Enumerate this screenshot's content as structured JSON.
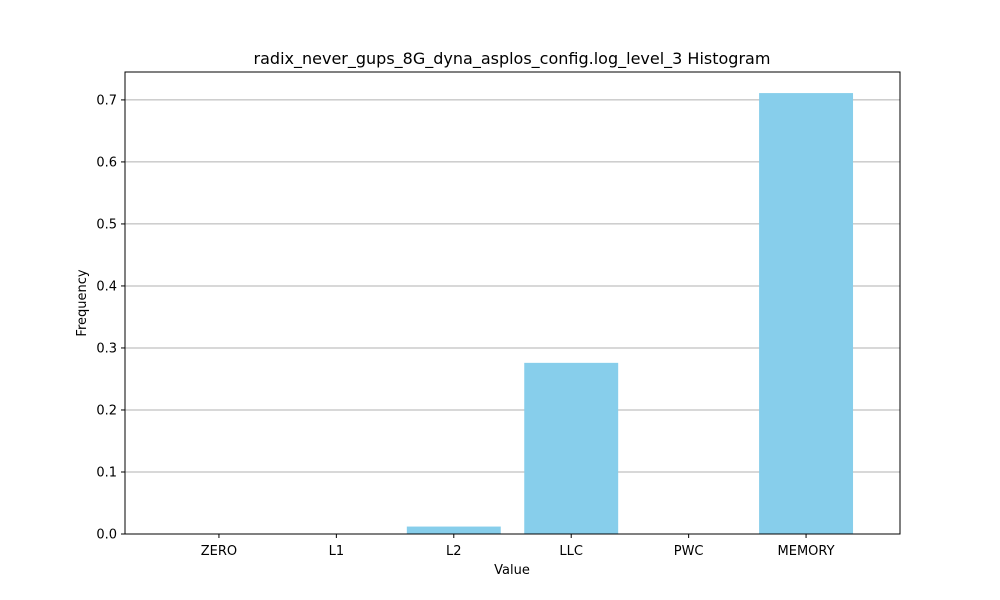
{
  "chart_data": {
    "type": "bar",
    "title": "radix_never_gups_8G_dyna_asplos_config.log_level_3 Histogram",
    "xlabel": "Value",
    "ylabel": "Frequency",
    "categories": [
      "ZERO",
      "L1",
      "L2",
      "LLC",
      "PWC",
      "MEMORY"
    ],
    "values": [
      0.0,
      0.0,
      0.012,
      0.276,
      0.0,
      0.711
    ],
    "ylim": [
      0,
      0.745
    ],
    "yticks": [
      0.0,
      0.1,
      0.2,
      0.3,
      0.4,
      0.5,
      0.6,
      0.7
    ],
    "ytick_labels": [
      "0.0",
      "0.1",
      "0.2",
      "0.3",
      "0.4",
      "0.5",
      "0.6",
      "0.7"
    ],
    "grid": "y",
    "bar_color": "#87ceeb",
    "grid_color": "#b0b0b0"
  }
}
